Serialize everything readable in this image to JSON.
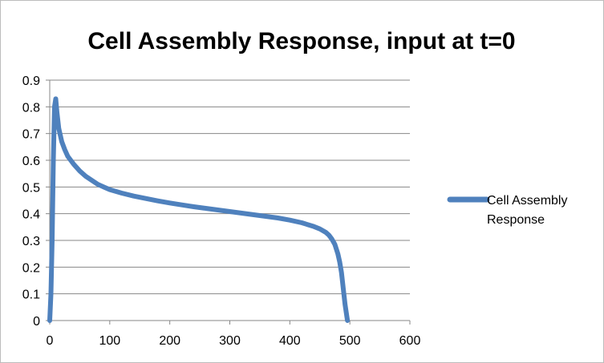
{
  "chart_data": {
    "type": "line",
    "title": "Cell Assembly Response, input at t=0",
    "xlabel": "",
    "ylabel": "",
    "xlim": [
      0,
      600
    ],
    "ylim": [
      0,
      0.9
    ],
    "x_ticks": [
      0,
      100,
      200,
      300,
      400,
      500,
      600
    ],
    "y_ticks": [
      0,
      0.1,
      0.2,
      0.3,
      0.4,
      0.5,
      0.6,
      0.7,
      0.8,
      0.9
    ],
    "x_tick_labels": [
      "0",
      "100",
      "200",
      "300",
      "400",
      "500",
      "600"
    ],
    "y_tick_labels": [
      "0",
      "0.1",
      "0.2",
      "0.3",
      "0.4",
      "0.5",
      "0.6",
      "0.7",
      "0.8",
      "0.9"
    ],
    "grid": "horizontal",
    "legend_position": "right",
    "series": [
      {
        "name": "Cell Assembly Response",
        "color": "#4f81bd",
        "x": [
          0,
          2,
          4,
          6,
          8,
          10,
          12,
          15,
          20,
          25,
          30,
          40,
          50,
          60,
          70,
          80,
          90,
          100,
          120,
          140,
          160,
          180,
          200,
          220,
          240,
          260,
          280,
          300,
          320,
          340,
          360,
          380,
          400,
          420,
          430,
          440,
          450,
          460,
          465,
          470,
          475,
          480,
          483,
          486,
          488,
          490,
          492,
          494,
          495,
          496
        ],
        "y": [
          0,
          0.1,
          0.3,
          0.6,
          0.8,
          0.83,
          0.78,
          0.72,
          0.67,
          0.64,
          0.615,
          0.585,
          0.56,
          0.54,
          0.525,
          0.51,
          0.5,
          0.49,
          0.477,
          0.466,
          0.457,
          0.448,
          0.44,
          0.433,
          0.426,
          0.42,
          0.414,
          0.408,
          0.402,
          0.396,
          0.39,
          0.384,
          0.376,
          0.366,
          0.359,
          0.352,
          0.343,
          0.33,
          0.32,
          0.305,
          0.285,
          0.25,
          0.22,
          0.18,
          0.14,
          0.1,
          0.06,
          0.03,
          0.015,
          0
        ]
      }
    ]
  }
}
